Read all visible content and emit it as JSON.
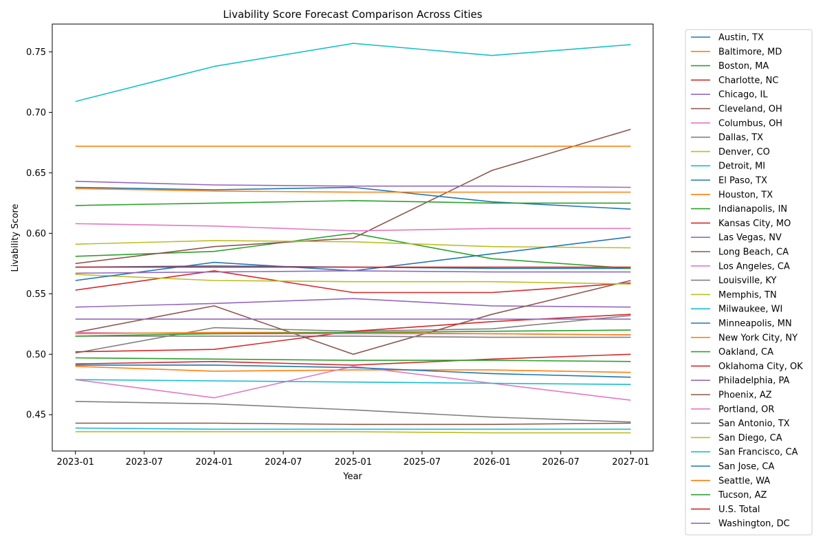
{
  "chart_data": {
    "type": "line",
    "title": "Livability Score Forecast Comparison Across Cities",
    "xlabel": "Year",
    "ylabel": "Livability Score",
    "x": [
      "2023-01",
      "2024-01",
      "2025-01",
      "2026-01",
      "2027-01"
    ],
    "x_ticks": [
      "2023-01",
      "2023-07",
      "2024-01",
      "2024-07",
      "2025-01",
      "2025-07",
      "2026-01",
      "2026-07",
      "2027-01"
    ],
    "x_range": [
      "2022-11",
      "2027-03"
    ],
    "y_ticks": [
      "0.45",
      "0.50",
      "0.55",
      "0.60",
      "0.65",
      "0.70",
      "0.75"
    ],
    "ylim": [
      0.42,
      0.773
    ],
    "grid": false,
    "legend_position": "outside-right",
    "series": [
      {
        "name": "Austin, TX",
        "color": "#1f77b4",
        "values": [
          0.572,
          0.573,
          0.572,
          0.571,
          0.571
        ]
      },
      {
        "name": "Baltimore, MD",
        "color": "#ff7f0e",
        "values": [
          0.49,
          0.486,
          0.487,
          0.487,
          0.485
        ]
      },
      {
        "name": "Boston, MA",
        "color": "#2ca02c",
        "values": [
          0.581,
          0.585,
          0.6,
          0.579,
          0.571
        ]
      },
      {
        "name": "Charlotte, NC",
        "color": "#d62728",
        "values": [
          0.553,
          0.569,
          0.551,
          0.551,
          0.559
        ]
      },
      {
        "name": "Chicago, IL",
        "color": "#9467bd",
        "values": [
          0.539,
          0.542,
          0.546,
          0.54,
          0.539
        ]
      },
      {
        "name": "Cleveland, OH",
        "color": "#8c564b",
        "values": [
          0.575,
          0.589,
          0.596,
          0.652,
          0.686
        ]
      },
      {
        "name": "Columbus, OH",
        "color": "#e377c2",
        "values": [
          0.608,
          0.606,
          0.602,
          0.604,
          0.604
        ]
      },
      {
        "name": "Dallas, TX",
        "color": "#7f7f7f",
        "values": [
          0.501,
          0.522,
          0.519,
          0.521,
          0.532
        ]
      },
      {
        "name": "Denver, CO",
        "color": "#bcbd22",
        "values": [
          0.591,
          0.594,
          0.593,
          0.589,
          0.588
        ]
      },
      {
        "name": "Detroit, MI",
        "color": "#17becf",
        "values": [
          0.709,
          0.738,
          0.757,
          0.747,
          0.756
        ]
      },
      {
        "name": "El Paso, TX",
        "color": "#1f77b4",
        "values": [
          0.638,
          0.636,
          0.638,
          0.626,
          0.62
        ]
      },
      {
        "name": "Houston, TX",
        "color": "#ff7f0e",
        "values": [
          0.637,
          0.635,
          0.634,
          0.634,
          0.634
        ]
      },
      {
        "name": "Indianapolis, IN",
        "color": "#2ca02c",
        "values": [
          0.623,
          0.625,
          0.627,
          0.625,
          0.625
        ]
      },
      {
        "name": "Kansas City, MO",
        "color": "#d62728",
        "values": [
          0.492,
          0.494,
          0.491,
          0.496,
          0.5
        ]
      },
      {
        "name": "Las Vegas, NV",
        "color": "#9467bd",
        "values": [
          0.643,
          0.64,
          0.639,
          0.639,
          0.638
        ]
      },
      {
        "name": "Long Beach, CA",
        "color": "#8c564b",
        "values": [
          0.518,
          0.54,
          0.5,
          0.533,
          0.561
        ]
      },
      {
        "name": "Los Angeles, CA",
        "color": "#e377c2",
        "values": [
          0.479,
          0.464,
          0.49,
          0.476,
          0.462
        ]
      },
      {
        "name": "Louisville, KY",
        "color": "#7f7f7f",
        "values": [
          0.515,
          0.515,
          0.515,
          0.514,
          0.514
        ]
      },
      {
        "name": "Memphis, TN",
        "color": "#bcbd22",
        "values": [
          0.566,
          0.561,
          0.56,
          0.56,
          0.558
        ]
      },
      {
        "name": "Milwaukee, WI",
        "color": "#17becf",
        "values": [
          0.479,
          0.478,
          0.477,
          0.476,
          0.475
        ]
      },
      {
        "name": "Minneapolis, MN",
        "color": "#1f77b4",
        "values": [
          0.561,
          0.576,
          0.569,
          0.583,
          0.597
        ]
      },
      {
        "name": "New York City, NY",
        "color": "#ff7f0e",
        "values": [
          0.672,
          0.672,
          0.672,
          0.672,
          0.672
        ]
      },
      {
        "name": "Oakland, CA",
        "color": "#2ca02c",
        "values": [
          0.497,
          0.496,
          0.495,
          0.495,
          0.494
        ]
      },
      {
        "name": "Oklahoma City, OK",
        "color": "#d62728",
        "values": [
          0.502,
          0.504,
          0.519,
          0.527,
          0.533
        ]
      },
      {
        "name": "Philadelphia, PA",
        "color": "#9467bd",
        "values": [
          0.529,
          0.529,
          0.529,
          0.529,
          0.529
        ]
      },
      {
        "name": "Phoenix, AZ",
        "color": "#8c564b",
        "values": [
          0.443,
          0.443,
          0.442,
          0.442,
          0.443
        ]
      },
      {
        "name": "Portland, OR",
        "color": "#e377c2",
        "values": [
          0.518,
          0.517,
          0.517,
          0.517,
          0.516
        ]
      },
      {
        "name": "San Antonio, TX",
        "color": "#7f7f7f",
        "values": [
          0.461,
          0.459,
          0.454,
          0.448,
          0.444
        ]
      },
      {
        "name": "San Diego, CA",
        "color": "#bcbd22",
        "values": [
          0.436,
          0.436,
          0.436,
          0.435,
          0.435
        ]
      },
      {
        "name": "San Francisco, CA",
        "color": "#17becf",
        "values": [
          0.439,
          0.438,
          0.438,
          0.438,
          0.438
        ]
      },
      {
        "name": "San Jose, CA",
        "color": "#1f77b4",
        "values": [
          0.491,
          0.491,
          0.489,
          0.484,
          0.481
        ]
      },
      {
        "name": "Seattle, WA",
        "color": "#ff7f0e",
        "values": [
          0.517,
          0.518,
          0.518,
          0.517,
          0.516
        ]
      },
      {
        "name": "Tucson, AZ",
        "color": "#2ca02c",
        "values": [
          0.515,
          0.517,
          0.518,
          0.519,
          0.52
        ]
      },
      {
        "name": "U.S. Total",
        "color": "#d62728",
        "values": [
          0.572,
          0.572,
          0.572,
          0.572,
          0.572
        ]
      },
      {
        "name": "Washington, DC",
        "color": "#9467bd",
        "values": [
          0.567,
          0.568,
          0.569,
          0.568,
          0.568
        ]
      }
    ]
  }
}
